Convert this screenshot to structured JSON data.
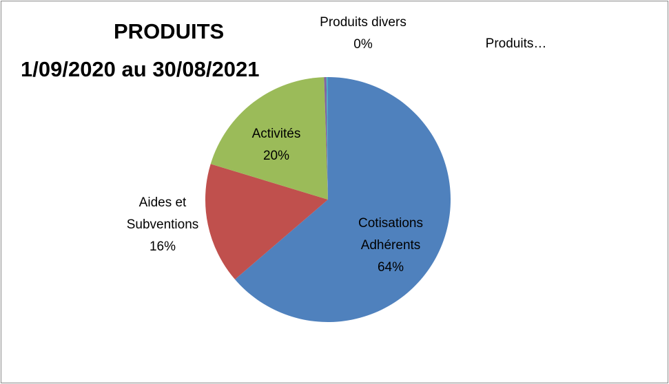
{
  "chart_data": {
    "type": "pie",
    "title": "PRODUITS",
    "subtitle": "1/09/2020 au 30/08/2021",
    "categories": [
      "Cotisations Adhérents",
      "Aides et Subventions",
      "Activités",
      "Produits divers",
      "Produits…"
    ],
    "values": [
      63.7,
      16.0,
      19.8,
      0.3,
      0.2
    ],
    "value_labels": [
      "64%",
      "16%",
      "20%",
      "0%",
      null
    ],
    "colors": [
      "#4f81bd",
      "#c0504d",
      "#9bbb59",
      "#8064a2",
      "#4bacc6"
    ]
  }
}
